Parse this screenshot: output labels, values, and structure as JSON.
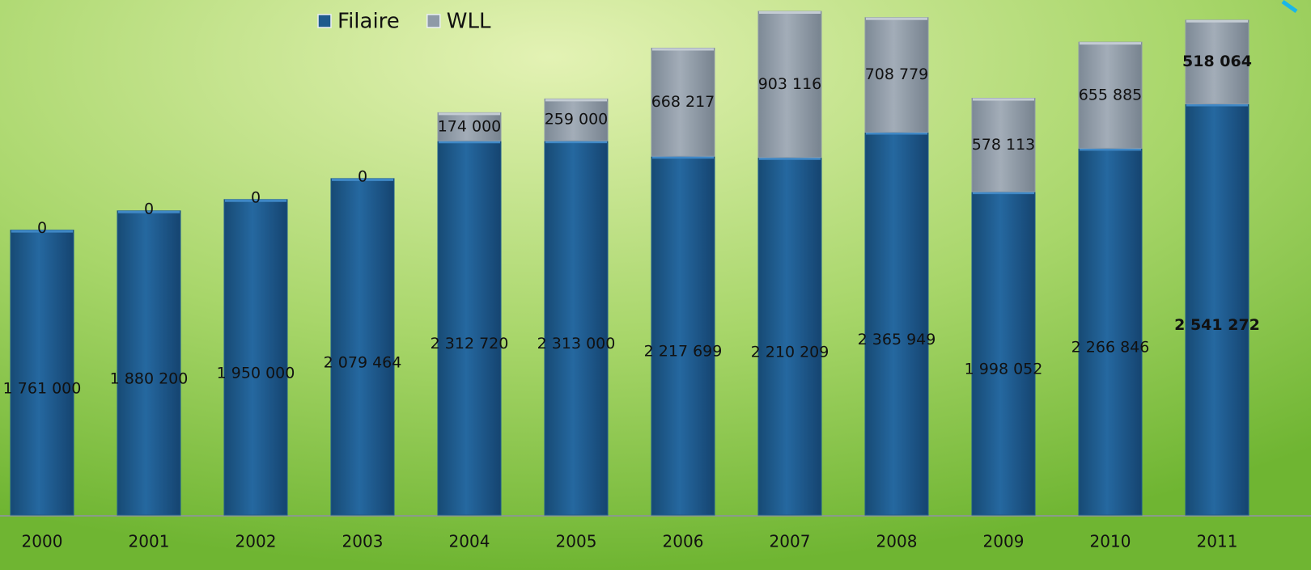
{
  "chart_data": {
    "type": "bar",
    "stacked": true,
    "categories": [
      "2000",
      "2001",
      "2002",
      "2003",
      "2004",
      "2005",
      "2006",
      "2007",
      "2008",
      "2009",
      "2010",
      "2011"
    ],
    "series": [
      {
        "name": "Filaire",
        "color": "#1e5b8c",
        "values": [
          1761000,
          1880200,
          1950000,
          2079464,
          2312720,
          2313000,
          2217699,
          2210209,
          2365949,
          1998052,
          2266846,
          2541272
        ],
        "value_labels": [
          "1 761 000",
          "1 880 200",
          "1 950 000",
          "2 079 464",
          "2 312 720",
          "2 313 000",
          "2 217 699",
          "2 210 209",
          "2 365 949",
          "1 998 052",
          "2 266 846",
          "2 541 272"
        ]
      },
      {
        "name": "WLL",
        "color": "#8e9aa7",
        "values": [
          0,
          0,
          0,
          0,
          174000,
          259000,
          668217,
          903116,
          708779,
          578113,
          655885,
          518064
        ],
        "value_labels": [
          "0",
          "0",
          "0",
          "0",
          "174 000",
          "259 000",
          "668 217",
          "903 116",
          "708 779",
          "578 113",
          "655 885",
          "518 064"
        ]
      }
    ],
    "legend": "top"
  }
}
